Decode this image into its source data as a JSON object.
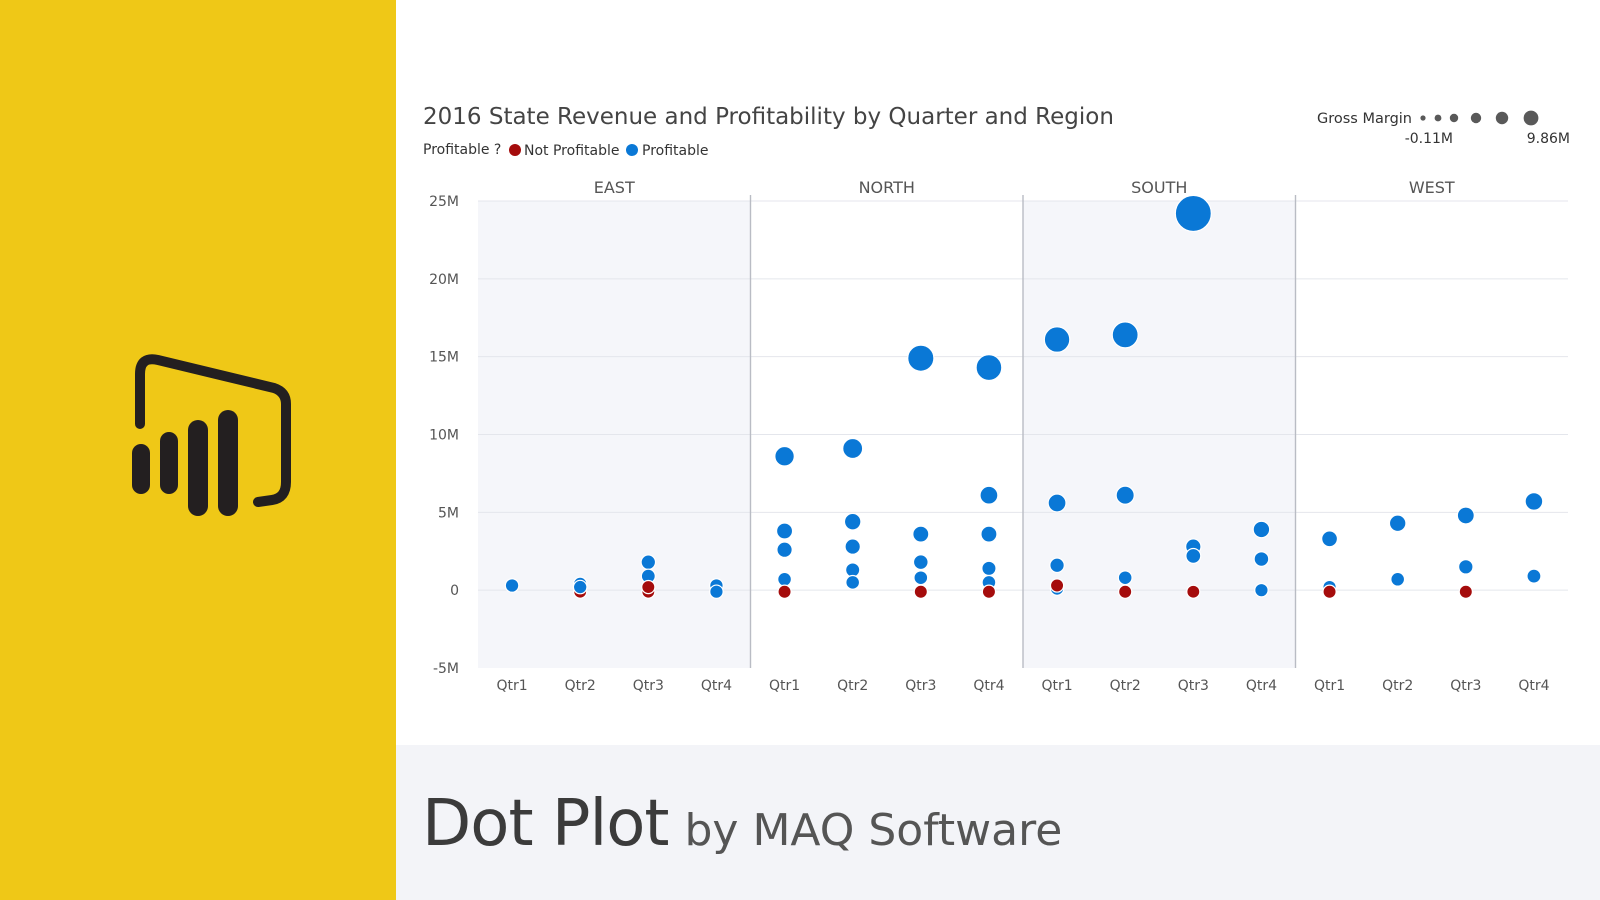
{
  "footer": {
    "title": "Dot Plot",
    "subtitle": "by MAQ Software"
  },
  "colors": {
    "sidebar": "#efc817",
    "profitable": "#0a78d6",
    "not_profitable": "#a50c0c",
    "logo": "#231f20"
  },
  "chart_data": {
    "type": "scatter",
    "title": "2016 State Revenue and Profitability by Quarter and Region",
    "legend_title": "Profitable ?",
    "legend": [
      {
        "name": "Not Profitable",
        "color": "#a50c0c"
      },
      {
        "name": "Profitable",
        "color": "#0a78d6"
      }
    ],
    "size_legend": {
      "title": "Gross Margin",
      "min_label": "-0.11M",
      "max_label": "9.86M"
    },
    "ylim": [
      -5,
      25
    ],
    "yticks": [
      -5,
      0,
      5,
      10,
      15,
      20,
      25
    ],
    "ytick_labels": [
      "-5M",
      "0",
      "5M",
      "10M",
      "15M",
      "20M",
      "25M"
    ],
    "grid": true,
    "panels": [
      "EAST",
      "NORTH",
      "SOUTH",
      "WEST"
    ],
    "categories": [
      "Qtr1",
      "Qtr2",
      "Qtr3",
      "Qtr4"
    ],
    "points": [
      {
        "region": "EAST",
        "quarter": "Qtr1",
        "revenue": 0.3,
        "profitable": true,
        "gross_margin": 0.1
      },
      {
        "region": "EAST",
        "quarter": "Qtr2",
        "revenue": 0.4,
        "profitable": true,
        "gross_margin": 0.1
      },
      {
        "region": "EAST",
        "quarter": "Qtr2",
        "revenue": -0.1,
        "profitable": false,
        "gross_margin": -0.1
      },
      {
        "region": "EAST",
        "quarter": "Qtr2",
        "revenue": 0.2,
        "profitable": true,
        "gross_margin": 0.1
      },
      {
        "region": "EAST",
        "quarter": "Qtr3",
        "revenue": 1.8,
        "profitable": true,
        "gross_margin": 0.5
      },
      {
        "region": "EAST",
        "quarter": "Qtr3",
        "revenue": 0.9,
        "profitable": true,
        "gross_margin": 0.3
      },
      {
        "region": "EAST",
        "quarter": "Qtr3",
        "revenue": -0.1,
        "profitable": false,
        "gross_margin": -0.1
      },
      {
        "region": "EAST",
        "quarter": "Qtr3",
        "revenue": 0.2,
        "profitable": false,
        "gross_margin": -0.05
      },
      {
        "region": "EAST",
        "quarter": "Qtr4",
        "revenue": 0.3,
        "profitable": true,
        "gross_margin": 0.1
      },
      {
        "region": "EAST",
        "quarter": "Qtr4",
        "revenue": -0.1,
        "profitable": true,
        "gross_margin": 0.05
      },
      {
        "region": "NORTH",
        "quarter": "Qtr1",
        "revenue": 8.6,
        "profitable": true,
        "gross_margin": 2.7
      },
      {
        "region": "NORTH",
        "quarter": "Qtr1",
        "revenue": 3.8,
        "profitable": true,
        "gross_margin": 1.2
      },
      {
        "region": "NORTH",
        "quarter": "Qtr1",
        "revenue": 2.6,
        "profitable": true,
        "gross_margin": 0.9
      },
      {
        "region": "NORTH",
        "quarter": "Qtr1",
        "revenue": 0.7,
        "profitable": true,
        "gross_margin": 0.2
      },
      {
        "region": "NORTH",
        "quarter": "Qtr1",
        "revenue": -0.1,
        "profitable": false,
        "gross_margin": -0.05
      },
      {
        "region": "NORTH",
        "quarter": "Qtr2",
        "revenue": 9.1,
        "profitable": true,
        "gross_margin": 2.9
      },
      {
        "region": "NORTH",
        "quarter": "Qtr2",
        "revenue": 4.4,
        "profitable": true,
        "gross_margin": 1.4
      },
      {
        "region": "NORTH",
        "quarter": "Qtr2",
        "revenue": 2.8,
        "profitable": true,
        "gross_margin": 0.9
      },
      {
        "region": "NORTH",
        "quarter": "Qtr2",
        "revenue": 1.3,
        "profitable": true,
        "gross_margin": 0.4
      },
      {
        "region": "NORTH",
        "quarter": "Qtr2",
        "revenue": 0.5,
        "profitable": true,
        "gross_margin": 0.2
      },
      {
        "region": "NORTH",
        "quarter": "Qtr3",
        "revenue": 14.9,
        "profitable": true,
        "gross_margin": 5.6
      },
      {
        "region": "NORTH",
        "quarter": "Qtr3",
        "revenue": 3.6,
        "profitable": true,
        "gross_margin": 1.2
      },
      {
        "region": "NORTH",
        "quarter": "Qtr3",
        "revenue": 1.8,
        "profitable": true,
        "gross_margin": 0.6
      },
      {
        "region": "NORTH",
        "quarter": "Qtr3",
        "revenue": 0.8,
        "profitable": true,
        "gross_margin": 0.2
      },
      {
        "region": "NORTH",
        "quarter": "Qtr3",
        "revenue": -0.1,
        "profitable": false,
        "gross_margin": -0.05
      },
      {
        "region": "NORTH",
        "quarter": "Qtr4",
        "revenue": 14.3,
        "profitable": true,
        "gross_margin": 5.4
      },
      {
        "region": "NORTH",
        "quarter": "Qtr4",
        "revenue": 6.1,
        "profitable": true,
        "gross_margin": 2.0
      },
      {
        "region": "NORTH",
        "quarter": "Qtr4",
        "revenue": 3.6,
        "profitable": true,
        "gross_margin": 1.2
      },
      {
        "region": "NORTH",
        "quarter": "Qtr4",
        "revenue": 1.4,
        "profitable": true,
        "gross_margin": 0.4
      },
      {
        "region": "NORTH",
        "quarter": "Qtr4",
        "revenue": 0.5,
        "profitable": true,
        "gross_margin": 0.2
      },
      {
        "region": "NORTH",
        "quarter": "Qtr4",
        "revenue": -0.1,
        "profitable": false,
        "gross_margin": -0.05
      },
      {
        "region": "SOUTH",
        "quarter": "Qtr1",
        "revenue": 16.1,
        "profitable": true,
        "gross_margin": 5.3
      },
      {
        "region": "SOUTH",
        "quarter": "Qtr1",
        "revenue": 5.6,
        "profitable": true,
        "gross_margin": 2.0
      },
      {
        "region": "SOUTH",
        "quarter": "Qtr1",
        "revenue": 1.6,
        "profitable": true,
        "gross_margin": 0.5
      },
      {
        "region": "SOUTH",
        "quarter": "Qtr1",
        "revenue": 0.1,
        "profitable": true,
        "gross_margin": 0.05
      },
      {
        "region": "SOUTH",
        "quarter": "Qtr1",
        "revenue": 0.3,
        "profitable": false,
        "gross_margin": -0.05
      },
      {
        "region": "SOUTH",
        "quarter": "Qtr2",
        "revenue": 16.4,
        "profitable": true,
        "gross_margin": 5.5
      },
      {
        "region": "SOUTH",
        "quarter": "Qtr2",
        "revenue": 6.1,
        "profitable": true,
        "gross_margin": 2.1
      },
      {
        "region": "SOUTH",
        "quarter": "Qtr2",
        "revenue": 0.8,
        "profitable": true,
        "gross_margin": 0.2
      },
      {
        "region": "SOUTH",
        "quarter": "Qtr2",
        "revenue": -0.1,
        "profitable": false,
        "gross_margin": -0.05
      },
      {
        "region": "SOUTH",
        "quarter": "Qtr3",
        "revenue": 24.2,
        "profitable": true,
        "gross_margin": 9.86
      },
      {
        "region": "SOUTH",
        "quarter": "Qtr3",
        "revenue": 2.8,
        "profitable": true,
        "gross_margin": 0.9
      },
      {
        "region": "SOUTH",
        "quarter": "Qtr3",
        "revenue": 2.2,
        "profitable": true,
        "gross_margin": 0.7
      },
      {
        "region": "SOUTH",
        "quarter": "Qtr3",
        "revenue": -0.1,
        "profitable": false,
        "gross_margin": -0.11
      },
      {
        "region": "SOUTH",
        "quarter": "Qtr4",
        "revenue": 3.9,
        "profitable": true,
        "gross_margin": 1.4
      },
      {
        "region": "SOUTH",
        "quarter": "Qtr4",
        "revenue": 2.0,
        "profitable": true,
        "gross_margin": 0.6
      },
      {
        "region": "SOUTH",
        "quarter": "Qtr4",
        "revenue": 0.0,
        "profitable": true,
        "gross_margin": 0.05
      },
      {
        "region": "WEST",
        "quarter": "Qtr1",
        "revenue": 3.3,
        "profitable": true,
        "gross_margin": 1.1
      },
      {
        "region": "WEST",
        "quarter": "Qtr1",
        "revenue": 0.2,
        "profitable": true,
        "gross_margin": 0.05
      },
      {
        "region": "WEST",
        "quarter": "Qtr1",
        "revenue": -0.1,
        "profitable": false,
        "gross_margin": -0.05
      },
      {
        "region": "WEST",
        "quarter": "Qtr2",
        "revenue": 4.3,
        "profitable": true,
        "gross_margin": 1.4
      },
      {
        "region": "WEST",
        "quarter": "Qtr2",
        "revenue": 0.7,
        "profitable": true,
        "gross_margin": 0.2
      },
      {
        "region": "WEST",
        "quarter": "Qtr3",
        "revenue": 4.8,
        "profitable": true,
        "gross_margin": 1.6
      },
      {
        "region": "WEST",
        "quarter": "Qtr3",
        "revenue": 1.5,
        "profitable": true,
        "gross_margin": 0.5
      },
      {
        "region": "WEST",
        "quarter": "Qtr3",
        "revenue": -0.1,
        "profitable": false,
        "gross_margin": -0.05
      },
      {
        "region": "WEST",
        "quarter": "Qtr4",
        "revenue": 5.7,
        "profitable": true,
        "gross_margin": 1.9
      },
      {
        "region": "WEST",
        "quarter": "Qtr4",
        "revenue": 0.9,
        "profitable": true,
        "gross_margin": 0.3
      }
    ]
  }
}
